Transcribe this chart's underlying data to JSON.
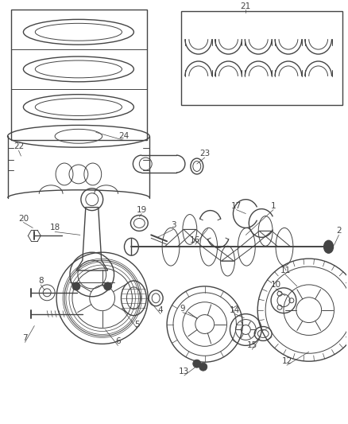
{
  "background_color": "#ffffff",
  "line_color": "#444444",
  "fig_width": 4.38,
  "fig_height": 5.33,
  "dpi": 100
}
